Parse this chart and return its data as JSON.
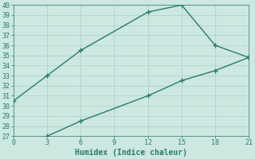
{
  "xlabel": "Humidex (Indice chaleur)",
  "line1_x": [
    0,
    3,
    6,
    12,
    15,
    18,
    21
  ],
  "line1_y": [
    30.5,
    33.0,
    35.5,
    39.3,
    40.0,
    36.0,
    34.8
  ],
  "line2_x": [
    3,
    6,
    12,
    15,
    18,
    21
  ],
  "line2_y": [
    27.0,
    28.5,
    31.0,
    32.5,
    33.5,
    34.8
  ],
  "line_color": "#2a7a6a",
  "bg_color": "#cce8e0",
  "grid_color": "#aacfc8",
  "xlim": [
    0,
    21
  ],
  "ylim": [
    27,
    40
  ],
  "xticks": [
    0,
    3,
    6,
    9,
    12,
    15,
    18,
    21
  ],
  "yticks": [
    27,
    28,
    29,
    30,
    31,
    32,
    33,
    34,
    35,
    36,
    37,
    38,
    39,
    40
  ],
  "marker": "+",
  "marker_size": 5,
  "linewidth": 1.0
}
